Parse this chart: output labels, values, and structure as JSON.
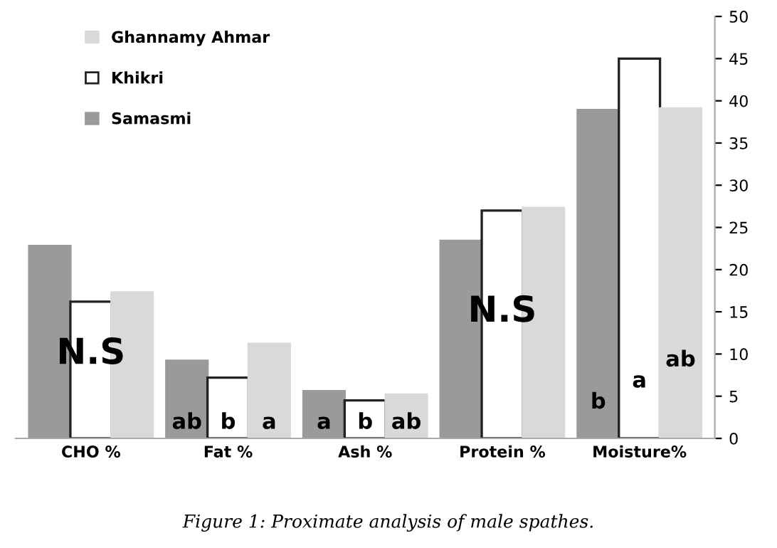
{
  "chart_data": {
    "type": "bar",
    "categories": [
      "CHO %",
      "Fat %",
      "Ash %",
      "Protein %",
      "Moisture%"
    ],
    "series": [
      {
        "name": "Samasmi",
        "color": "#9a9a9a",
        "values": [
          22.8,
          9.2,
          5.6,
          23.4,
          38.9
        ],
        "value_labels": [
          null,
          "ab",
          "a",
          null,
          "b"
        ]
      },
      {
        "name": "Khikri",
        "color": "#ffffff",
        "values": [
          16.2,
          7.2,
          4.5,
          27.0,
          45.0
        ],
        "value_labels": [
          null,
          "b",
          "b",
          null,
          "a"
        ]
      },
      {
        "name": "Ghannamy Ahmar",
        "color": "#d9d9d9",
        "values": [
          17.3,
          11.2,
          5.2,
          27.3,
          39.1
        ],
        "value_labels": [
          null,
          "a",
          "ab",
          null,
          "ab"
        ]
      }
    ],
    "ylim": [
      0,
      50
    ],
    "yticks": [
      0,
      5,
      10,
      15,
      20,
      25,
      30,
      35,
      40,
      45,
      50
    ],
    "grid": false,
    "legend": "top left",
    "annotations": [
      "N.S",
      "N.S",
      "Figure 1: Proximate analysis of male spathes."
    ]
  }
}
